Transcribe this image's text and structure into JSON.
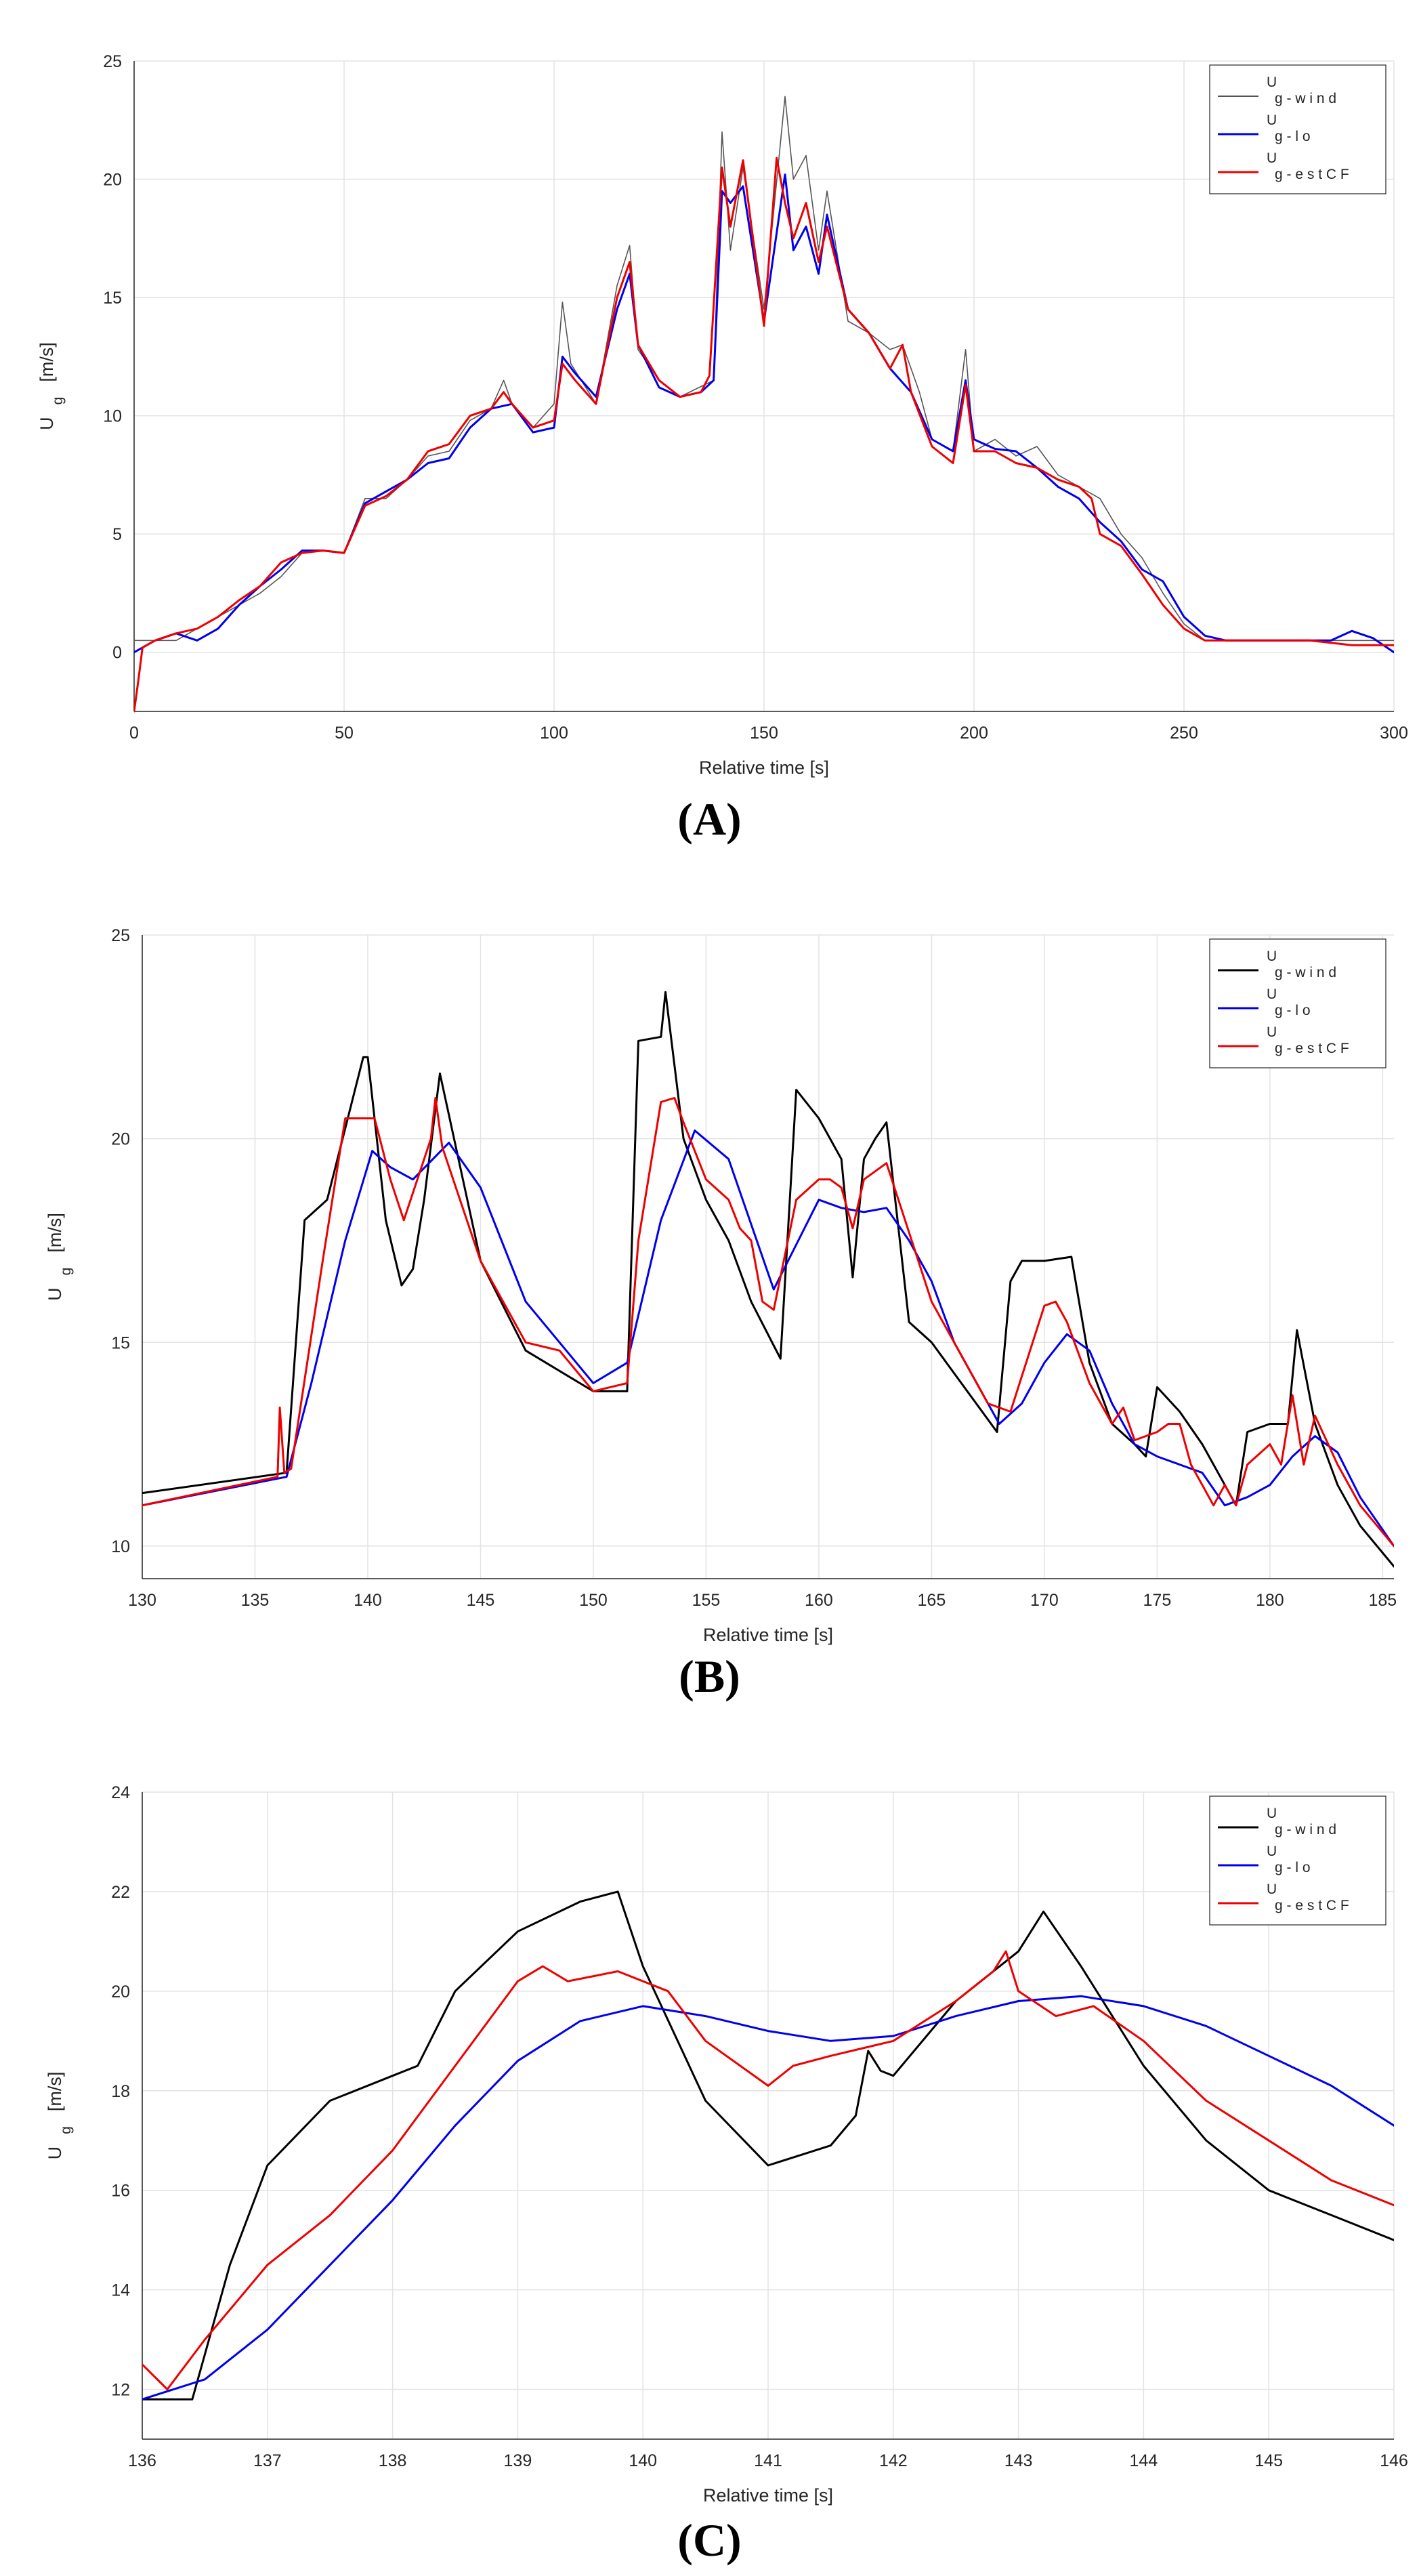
{
  "chart_data": [
    {
      "panel": "A",
      "type": "line",
      "xlabel": "Relative time [s]",
      "ylabel": "U",
      "ylabel_sub": "g",
      "ylabel_unit": "[m/s]",
      "xlim": [
        0,
        300
      ],
      "ylim": [
        -2.5,
        25
      ],
      "xticks": [
        0,
        50,
        100,
        150,
        200,
        250,
        300
      ],
      "yticks": [
        0,
        5,
        10,
        15,
        20,
        25
      ],
      "grid": true,
      "legend_position": "top-right",
      "series": [
        {
          "name": "U",
          "sub": "g-wind",
          "color": "#555555",
          "width": 1.6,
          "x": [
            0,
            2,
            10,
            20,
            30,
            35,
            40,
            45,
            50,
            55,
            60,
            65,
            70,
            75,
            80,
            85,
            88,
            90,
            95,
            100,
            102,
            104,
            110,
            115,
            118,
            120,
            125,
            130,
            138,
            140,
            142,
            145,
            150,
            155,
            157,
            160,
            163,
            165,
            170,
            175,
            180,
            183,
            187,
            190,
            195,
            198,
            200,
            205,
            210,
            215,
            220,
            225,
            227,
            230,
            235,
            240,
            245,
            250,
            255,
            260,
            270,
            280,
            290,
            300
          ],
          "y": [
            0.5,
            0.5,
            0.5,
            1.5,
            2.5,
            3.2,
            4.2,
            4.3,
            4.2,
            6.5,
            6.5,
            7.3,
            8.3,
            8.5,
            9.8,
            10.3,
            11.5,
            10.5,
            9.5,
            10.5,
            14.8,
            12.2,
            10.5,
            15.5,
            17.2,
            12.8,
            11.5,
            10.8,
            11.5,
            22.0,
            17.0,
            20.5,
            14.5,
            23.5,
            20.0,
            21.0,
            17.0,
            19.5,
            14.0,
            13.5,
            12.8,
            13.0,
            11.0,
            9.0,
            8.5,
            12.8,
            8.5,
            9.0,
            8.3,
            8.7,
            7.5,
            7.0,
            6.8,
            6.5,
            5.0,
            4.0,
            2.5,
            1.2,
            0.5,
            0.5,
            0.5,
            0.5,
            0.5,
            0.5
          ]
        },
        {
          "name": "U",
          "sub": "g-lo",
          "color": "#0000ee",
          "width": 3,
          "x": [
            0,
            5,
            10,
            15,
            20,
            25,
            30,
            35,
            40,
            45,
            50,
            55,
            60,
            65,
            70,
            75,
            80,
            85,
            90,
            95,
            100,
            102,
            105,
            110,
            115,
            118,
            120,
            125,
            130,
            135,
            138,
            140,
            142,
            145,
            150,
            155,
            157,
            160,
            163,
            165,
            170,
            175,
            180,
            185,
            190,
            195,
            198,
            200,
            205,
            210,
            215,
            220,
            225,
            230,
            235,
            240,
            245,
            250,
            255,
            260,
            270,
            280,
            285,
            290,
            295,
            300
          ],
          "y": [
            0,
            0.5,
            0.8,
            0.5,
            1.0,
            2.0,
            2.8,
            3.5,
            4.3,
            4.3,
            4.2,
            6.3,
            6.8,
            7.3,
            8.0,
            8.2,
            9.5,
            10.3,
            10.5,
            9.3,
            9.5,
            12.5,
            11.8,
            10.8,
            14.5,
            16.0,
            13.0,
            11.2,
            10.8,
            11.0,
            11.5,
            19.5,
            19.0,
            19.7,
            14.0,
            20.2,
            17.0,
            18.0,
            16.0,
            18.5,
            14.5,
            13.5,
            12.0,
            11.0,
            9.0,
            8.5,
            11.5,
            9.0,
            8.6,
            8.5,
            7.8,
            7.0,
            6.5,
            5.5,
            4.7,
            3.5,
            3.0,
            1.5,
            0.7,
            0.5,
            0.5,
            0.5,
            0.5,
            0.9,
            0.6,
            0
          ]
        },
        {
          "name": "U",
          "sub": "g-est CF",
          "color": "#ee0000",
          "width": 3,
          "x": [
            0,
            1,
            2,
            5,
            10,
            15,
            20,
            25,
            30,
            35,
            40,
            45,
            50,
            55,
            60,
            65,
            70,
            75,
            80,
            85,
            88,
            90,
            95,
            100,
            102,
            105,
            110,
            115,
            118,
            120,
            125,
            130,
            135,
            137,
            140,
            142,
            145,
            150,
            153,
            155,
            157,
            160,
            163,
            165,
            170,
            175,
            180,
            183,
            185,
            190,
            195,
            198,
            200,
            205,
            210,
            215,
            220,
            225,
            228,
            230,
            235,
            240,
            245,
            250,
            255,
            260,
            270,
            280,
            290,
            295,
            300
          ],
          "y": [
            -2.5,
            -1.2,
            0.2,
            0.5,
            0.8,
            1.0,
            1.5,
            2.2,
            2.8,
            3.8,
            4.2,
            4.3,
            4.2,
            6.2,
            6.6,
            7.3,
            8.5,
            8.8,
            10.0,
            10.3,
            11.0,
            10.5,
            9.5,
            9.8,
            12.2,
            11.5,
            10.5,
            15.0,
            16.5,
            13.0,
            11.5,
            10.8,
            11.0,
            11.7,
            20.5,
            18.0,
            20.8,
            13.8,
            20.9,
            19.0,
            17.5,
            19.0,
            16.5,
            18.0,
            14.5,
            13.5,
            12.0,
            13.0,
            11.0,
            8.7,
            8.0,
            11.3,
            8.5,
            8.5,
            8.0,
            7.8,
            7.3,
            7.0,
            6.5,
            5.0,
            4.5,
            3.3,
            2.0,
            1.0,
            0.5,
            0.5,
            0.5,
            0.5,
            0.3,
            0.3,
            0.3
          ]
        }
      ]
    },
    {
      "panel": "B",
      "type": "line",
      "xlabel": "Relative time [s]",
      "ylabel": "U",
      "ylabel_sub": "g",
      "ylabel_unit": "[m/s]",
      "xlim": [
        130,
        185.5
      ],
      "ylim": [
        9.2,
        25
      ],
      "xticks": [
        130,
        135,
        140,
        145,
        150,
        155,
        160,
        165,
        170,
        175,
        180,
        185
      ],
      "yticks": [
        10,
        15,
        20,
        25
      ],
      "grid": true,
      "legend_position": "top-right",
      "series": [
        {
          "name": "U",
          "sub": "g-wind",
          "color": "#000000",
          "width": 3,
          "x": [
            130,
            136.4,
            137.2,
            138.2,
            139.8,
            140,
            140.8,
            141.5,
            142,
            142.5,
            143.2,
            145,
            147,
            150,
            151.5,
            152,
            153,
            153.2,
            154,
            155,
            156,
            157,
            158.3,
            159,
            160,
            161,
            161.5,
            162,
            162.5,
            163,
            164,
            165,
            167.9,
            168.5,
            169,
            170,
            171.2,
            172,
            173,
            174,
            174.5,
            175,
            176,
            177,
            178,
            178.5,
            179,
            180,
            180.8,
            181.2,
            182,
            183,
            184,
            185.5
          ],
          "y": [
            11.3,
            11.8,
            18.0,
            18.5,
            22.0,
            22.0,
            18.0,
            16.4,
            16.8,
            18.5,
            21.6,
            17.0,
            14.8,
            13.8,
            13.8,
            22.4,
            22.5,
            23.6,
            20.0,
            18.5,
            17.5,
            16.0,
            14.6,
            21.2,
            20.5,
            19.5,
            16.6,
            19.5,
            20.0,
            20.4,
            15.5,
            15.0,
            12.8,
            16.5,
            17.0,
            17.0,
            17.1,
            14.5,
            13.0,
            12.5,
            12.2,
            13.9,
            13.3,
            12.5,
            11.5,
            11.0,
            12.8,
            13.0,
            13.0,
            15.3,
            13.0,
            11.5,
            10.5,
            9.5
          ]
        },
        {
          "name": "U",
          "sub": "g-lo",
          "color": "#0000ee",
          "width": 3,
          "x": [
            130,
            136.4,
            137.5,
            139,
            140.2,
            141,
            142,
            143.6,
            145,
            147,
            150,
            151.5,
            153,
            154.5,
            156,
            158,
            160,
            161,
            162,
            163,
            164,
            165,
            166,
            168,
            169,
            170,
            171,
            172,
            173,
            174,
            175,
            176,
            177,
            178,
            179,
            180,
            181,
            182,
            183,
            184,
            185.5
          ],
          "y": [
            11.0,
            11.7,
            14.0,
            17.5,
            19.7,
            19.3,
            19.0,
            19.9,
            18.8,
            16.0,
            14.0,
            14.5,
            18.0,
            20.2,
            19.5,
            16.3,
            18.5,
            18.3,
            18.2,
            18.3,
            17.5,
            16.5,
            15.0,
            13.0,
            13.5,
            14.5,
            15.2,
            14.8,
            13.5,
            12.5,
            12.2,
            12.0,
            11.8,
            11.0,
            11.2,
            11.5,
            12.2,
            12.7,
            12.3,
            11.2,
            10.0
          ]
        },
        {
          "name": "U",
          "sub": "g-est CF",
          "color": "#ee0000",
          "width": 3,
          "x": [
            130,
            136,
            136.1,
            136.3,
            136.6,
            138,
            139,
            139.8,
            140.3,
            141,
            141.6,
            142.5,
            142.8,
            143,
            143.3,
            145,
            147,
            148.5,
            150,
            151.5,
            152,
            153,
            153.6,
            154,
            155,
            156,
            156.5,
            157,
            157.5,
            158,
            159,
            160,
            160.5,
            161,
            161.5,
            162,
            162.5,
            163,
            165,
            167.5,
            168.5,
            170,
            170.5,
            171,
            172,
            173,
            173.5,
            174,
            175,
            175.5,
            176,
            176.5,
            177,
            177.5,
            178,
            178.5,
            179,
            180,
            180.5,
            181,
            181.5,
            182,
            183,
            184,
            185.5
          ],
          "y": [
            11.0,
            11.7,
            13.4,
            11.8,
            11.9,
            17.0,
            20.5,
            20.5,
            20.5,
            19.0,
            18.0,
            19.5,
            20.0,
            21.0,
            19.8,
            17.0,
            15.0,
            14.8,
            13.8,
            14.0,
            17.5,
            20.9,
            21.0,
            20.4,
            19.0,
            18.5,
            17.8,
            17.5,
            16.0,
            15.8,
            18.5,
            19.0,
            19.0,
            18.8,
            17.8,
            19.0,
            19.2,
            19.4,
            16.0,
            13.5,
            13.3,
            15.9,
            16.0,
            15.5,
            14.0,
            13.0,
            13.4,
            12.6,
            12.8,
            13.0,
            13.0,
            12.0,
            11.5,
            11.0,
            11.5,
            11.0,
            12.0,
            12.5,
            12.0,
            13.7,
            12.0,
            13.2,
            12.0,
            11.0,
            10.0
          ]
        }
      ]
    },
    {
      "panel": "C",
      "type": "line",
      "xlabel": "Relative time [s]",
      "ylabel": "U",
      "ylabel_sub": "g",
      "ylabel_unit": "[m/s]",
      "xlim": [
        136,
        146
      ],
      "ylim": [
        11,
        24
      ],
      "xticks": [
        136,
        137,
        138,
        139,
        140,
        141,
        142,
        143,
        144,
        145,
        146
      ],
      "yticks": [
        12,
        14,
        16,
        18,
        20,
        22,
        24
      ],
      "grid": true,
      "legend_position": "top-right",
      "series": [
        {
          "name": "U",
          "sub": "g-wind",
          "color": "#000000",
          "width": 3,
          "x": [
            136,
            136.4,
            136.7,
            137,
            137.5,
            138,
            138.2,
            138.5,
            139,
            139.5,
            139.8,
            140,
            140.5,
            141,
            141.5,
            141.7,
            141.8,
            141.9,
            142,
            142.5,
            143,
            143.2,
            143.5,
            144,
            144.5,
            145,
            145.5,
            146
          ],
          "y": [
            11.8,
            11.8,
            14.5,
            16.5,
            17.8,
            18.3,
            18.5,
            20.0,
            21.2,
            21.8,
            22.0,
            20.5,
            17.8,
            16.5,
            16.9,
            17.5,
            18.8,
            18.4,
            18.3,
            19.8,
            20.8,
            21.6,
            20.5,
            18.5,
            17.0,
            16.0,
            15.5,
            15.0
          ]
        },
        {
          "name": "U",
          "sub": "g-lo",
          "color": "#0000ee",
          "width": 3,
          "x": [
            136,
            136.5,
            137,
            137.5,
            138,
            138.5,
            139,
            139.5,
            140,
            140.5,
            141,
            141.5,
            142,
            142.5,
            143,
            143.5,
            144,
            144.5,
            145,
            145.5,
            146
          ],
          "y": [
            11.8,
            12.2,
            13.2,
            14.5,
            15.8,
            17.3,
            18.6,
            19.4,
            19.7,
            19.5,
            19.2,
            19.0,
            19.1,
            19.5,
            19.8,
            19.9,
            19.7,
            19.3,
            18.7,
            18.1,
            17.3
          ]
        },
        {
          "name": "U",
          "sub": "g-est CF",
          "color": "#ee0000",
          "width": 3,
          "x": [
            136,
            136.2,
            136.5,
            137,
            137.5,
            138,
            138.5,
            139,
            139.2,
            139.4,
            139.8,
            140.2,
            140.5,
            141,
            141.2,
            141.5,
            142,
            142.5,
            142.8,
            142.9,
            143,
            143.3,
            143.6,
            144,
            144.5,
            145,
            145.5,
            146
          ],
          "y": [
            12.5,
            12.0,
            13.0,
            14.5,
            15.5,
            16.8,
            18.5,
            20.2,
            20.5,
            20.2,
            20.4,
            20.0,
            19.0,
            18.1,
            18.5,
            18.7,
            19.0,
            19.8,
            20.4,
            20.8,
            20.0,
            19.5,
            19.7,
            19.0,
            17.8,
            17.0,
            16.2,
            15.7
          ]
        }
      ]
    }
  ],
  "panel_labels": [
    "(A)",
    "(B)",
    "(C)"
  ]
}
